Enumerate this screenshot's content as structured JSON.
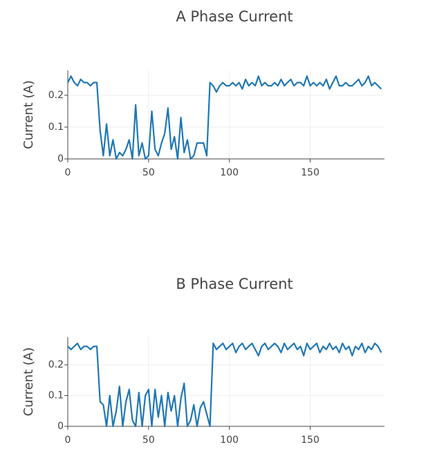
{
  "chart_data": [
    {
      "type": "line",
      "title": "A Phase Current",
      "y_label": "Current (A)",
      "x": [
        0,
        2,
        4,
        6,
        8,
        10,
        12,
        14,
        16,
        18,
        20,
        22,
        24,
        26,
        28,
        30,
        32,
        34,
        36,
        38,
        40,
        42,
        44,
        46,
        48,
        50,
        52,
        54,
        56,
        58,
        60,
        62,
        64,
        66,
        68,
        70,
        72,
        74,
        76,
        78,
        80,
        82,
        84,
        86,
        88,
        90,
        92,
        94,
        96,
        98,
        100,
        102,
        104,
        106,
        108,
        110,
        112,
        114,
        116,
        118,
        120,
        122,
        124,
        126,
        128,
        130,
        132,
        134,
        136,
        138,
        140,
        142,
        144,
        146,
        148,
        150,
        152,
        154,
        156,
        158,
        160,
        162,
        164,
        166,
        168,
        170,
        172,
        174,
        176,
        178,
        180,
        182,
        184,
        186,
        188,
        190,
        192,
        194
      ],
      "series": [
        {
          "color": "#1f77b4",
          "values": [
            0.24,
            0.26,
            0.24,
            0.23,
            0.25,
            0.24,
            0.24,
            0.23,
            0.24,
            0.24,
            0.09,
            0.01,
            0.11,
            0.01,
            0.06,
            0.0,
            0.02,
            0.01,
            0.03,
            0.06,
            0.0,
            0.17,
            0.01,
            0.05,
            0.0,
            0.01,
            0.15,
            0.03,
            0.01,
            0.05,
            0.08,
            0.16,
            0.03,
            0.07,
            0.0,
            0.13,
            0.02,
            0.06,
            0.0,
            0.01,
            0.05,
            0.05,
            0.05,
            0.01,
            0.24,
            0.23,
            0.21,
            0.23,
            0.24,
            0.23,
            0.23,
            0.24,
            0.23,
            0.24,
            0.22,
            0.25,
            0.23,
            0.24,
            0.23,
            0.26,
            0.23,
            0.24,
            0.23,
            0.23,
            0.24,
            0.23,
            0.25,
            0.23,
            0.24,
            0.25,
            0.23,
            0.24,
            0.24,
            0.23,
            0.26,
            0.23,
            0.24,
            0.23,
            0.24,
            0.23,
            0.25,
            0.22,
            0.24,
            0.26,
            0.23,
            0.23,
            0.24,
            0.23,
            0.23,
            0.24,
            0.25,
            0.23,
            0.24,
            0.26,
            0.23,
            0.24,
            0.23,
            0.22
          ]
        }
      ],
      "xlim": [
        0,
        196
      ],
      "xticks": [
        0,
        50,
        100,
        150
      ],
      "ylim": [
        0,
        0.278
      ],
      "yticks": [
        0,
        0.1,
        0.2
      ],
      "grid": true
    },
    {
      "type": "line",
      "title": "B Phase Current",
      "y_label": "Current (A)",
      "x": [
        0,
        2,
        4,
        6,
        8,
        10,
        12,
        14,
        16,
        18,
        20,
        22,
        24,
        26,
        28,
        30,
        32,
        34,
        36,
        38,
        40,
        42,
        44,
        46,
        48,
        50,
        52,
        54,
        56,
        58,
        60,
        62,
        64,
        66,
        68,
        70,
        72,
        74,
        76,
        78,
        80,
        82,
        84,
        86,
        88,
        90,
        92,
        94,
        96,
        98,
        100,
        102,
        104,
        106,
        108,
        110,
        112,
        114,
        116,
        118,
        120,
        122,
        124,
        126,
        128,
        130,
        132,
        134,
        136,
        138,
        140,
        142,
        144,
        146,
        148,
        150,
        152,
        154,
        156,
        158,
        160,
        162,
        164,
        166,
        168,
        170,
        172,
        174,
        176,
        178,
        180,
        182,
        184,
        186,
        188,
        190,
        192,
        194
      ],
      "series": [
        {
          "color": "#1f77b4",
          "values": [
            0.26,
            0.25,
            0.26,
            0.27,
            0.25,
            0.26,
            0.26,
            0.25,
            0.26,
            0.26,
            0.08,
            0.07,
            0.0,
            0.1,
            0.0,
            0.05,
            0.13,
            0.0,
            0.08,
            0.12,
            0.02,
            0.0,
            0.11,
            0.0,
            0.1,
            0.12,
            0.0,
            0.12,
            0.03,
            0.1,
            0.0,
            0.11,
            0.05,
            0.1,
            0.0,
            0.09,
            0.14,
            0.0,
            0.02,
            0.07,
            0.0,
            0.06,
            0.08,
            0.04,
            0.0,
            0.27,
            0.25,
            0.26,
            0.27,
            0.25,
            0.26,
            0.27,
            0.24,
            0.26,
            0.27,
            0.25,
            0.26,
            0.27,
            0.25,
            0.23,
            0.26,
            0.27,
            0.25,
            0.26,
            0.27,
            0.26,
            0.24,
            0.27,
            0.25,
            0.26,
            0.27,
            0.25,
            0.26,
            0.23,
            0.27,
            0.25,
            0.26,
            0.27,
            0.24,
            0.26,
            0.25,
            0.27,
            0.25,
            0.26,
            0.24,
            0.27,
            0.25,
            0.26,
            0.23,
            0.26,
            0.25,
            0.27,
            0.24,
            0.26,
            0.25,
            0.27,
            0.26,
            0.24
          ]
        }
      ],
      "xlim": [
        0,
        196
      ],
      "xticks": [
        0,
        50,
        100,
        150
      ],
      "ylim": [
        0,
        0.29
      ],
      "yticks": [
        0,
        0.1,
        0.2
      ],
      "grid": true
    }
  ]
}
